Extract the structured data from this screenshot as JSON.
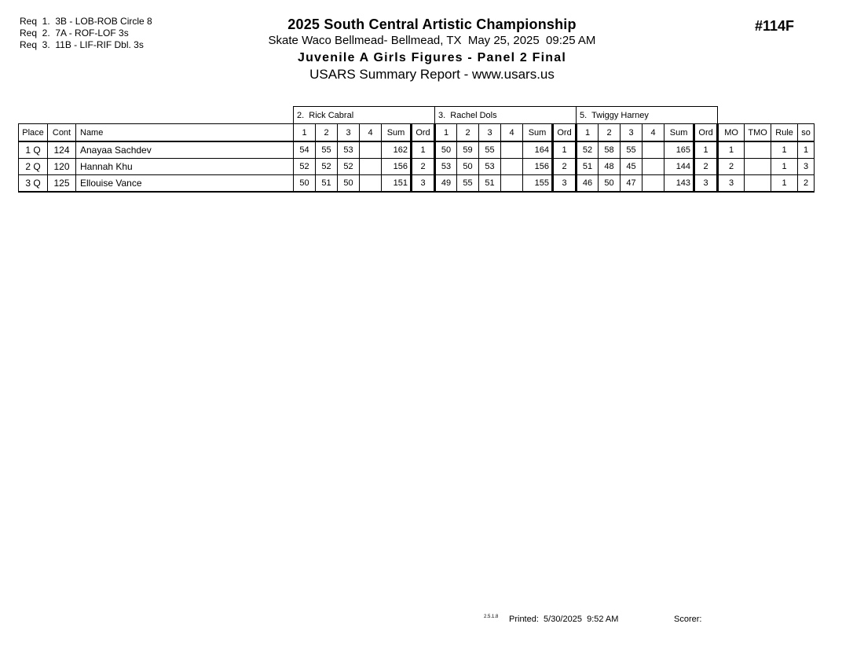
{
  "page": {
    "requirements": [
      "Req  1.  3B - LOB-ROB Circle 8",
      "Req  2.  7A - ROF-LOF 3s",
      "Req  3.  11B - LIF-RIF Dbl. 3s"
    ],
    "header": {
      "championship": "2025 South Central Artistic Championship",
      "venue_line": "Skate Waco Bellmead- Bellmead, TX  May 25, 2025  09:25 AM",
      "event_title": "Juvenile A Girls Figures - Panel 2 Final",
      "report_line": "USARS Summary Report - www.usars.us",
      "report_number": "#114F"
    },
    "footer": {
      "version": "2.5.1.8",
      "printed": "Printed:  5/30/2025  9:52 AM",
      "scorer": "Scorer:"
    }
  },
  "table": {
    "judges": [
      "2.  Rick Cabral",
      "3.  Rachel Dols",
      "5.  Twiggy Harney"
    ],
    "columns": {
      "place": "Place",
      "cont": "Cont",
      "name": "Name",
      "score_cols": [
        "1",
        "2",
        "3",
        "4",
        "Sum",
        "Ord"
      ],
      "mo": "MO",
      "tmo": "TMO",
      "rule": "Rule",
      "so": "so"
    },
    "rows": [
      {
        "place": "1 Q",
        "cont": "124",
        "name": "Anayaa Sachdev",
        "judges": [
          [
            "54",
            "55",
            "53",
            "",
            "162",
            "1"
          ],
          [
            "50",
            "59",
            "55",
            "",
            "164",
            "1"
          ],
          [
            "52",
            "58",
            "55",
            "",
            "165",
            "1"
          ]
        ],
        "mo": "1",
        "tmo": "",
        "rule": "1",
        "so": "1"
      },
      {
        "place": "2 Q",
        "cont": "120",
        "name": "Hannah Khu",
        "judges": [
          [
            "52",
            "52",
            "52",
            "",
            "156",
            "2"
          ],
          [
            "53",
            "50",
            "53",
            "",
            "156",
            "2"
          ],
          [
            "51",
            "48",
            "45",
            "",
            "144",
            "2"
          ]
        ],
        "mo": "2",
        "tmo": "",
        "rule": "1",
        "so": "3"
      },
      {
        "place": "3 Q",
        "cont": "125",
        "name": "Ellouise Vance",
        "judges": [
          [
            "50",
            "51",
            "50",
            "",
            "151",
            "3"
          ],
          [
            "49",
            "55",
            "51",
            "",
            "155",
            "3"
          ],
          [
            "46",
            "50",
            "47",
            "",
            "143",
            "3"
          ]
        ],
        "mo": "3",
        "tmo": "",
        "rule": "1",
        "so": "2"
      }
    ]
  }
}
